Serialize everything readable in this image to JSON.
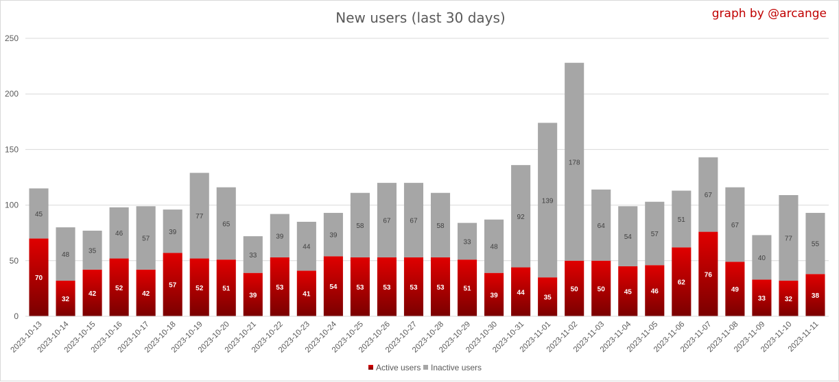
{
  "chart": {
    "credit": "graph by @arcange"
  },
  "colors": {
    "active_top": "#e00000",
    "active_bottom": "#7a0000",
    "inactive": "#a6a6a6",
    "grid": "#d9d9d9",
    "text": "#595959",
    "credit": "#c00000"
  },
  "chart_data": {
    "type": "bar",
    "stacked": true,
    "title": "New users (last 30 days)",
    "xlabel": "",
    "ylabel": "",
    "ylim": [
      0,
      250
    ],
    "yticks": [
      0,
      50,
      100,
      150,
      200,
      250
    ],
    "grid": true,
    "legend_position": "bottom",
    "categories": [
      "2023-10-13",
      "2023-10-14",
      "2023-10-15",
      "2023-10-16",
      "2023-10-17",
      "2023-10-18",
      "2023-10-19",
      "2023-10-20",
      "2023-10-21",
      "2023-10-22",
      "2023-10-23",
      "2023-10-24",
      "2023-10-25",
      "2023-10-26",
      "2023-10-27",
      "2023-10-28",
      "2023-10-29",
      "2023-10-30",
      "2023-10-31",
      "2023-11-01",
      "2023-11-02",
      "2023-11-03",
      "2023-11-04",
      "2023-11-05",
      "2023-11-06",
      "2023-11-07",
      "2023-11-08",
      "2023-11-09",
      "2023-11-10",
      "2023-11-11"
    ],
    "series": [
      {
        "name": "Active users",
        "values": [
          70,
          32,
          42,
          52,
          42,
          57,
          52,
          51,
          39,
          53,
          41,
          54,
          53,
          53,
          53,
          53,
          51,
          39,
          44,
          35,
          50,
          50,
          45,
          46,
          62,
          76,
          49,
          33,
          32,
          38
        ]
      },
      {
        "name": "Inactive users",
        "values": [
          45,
          48,
          35,
          46,
          57,
          39,
          77,
          65,
          33,
          39,
          44,
          39,
          58,
          67,
          67,
          58,
          33,
          48,
          92,
          139,
          178,
          64,
          54,
          57,
          51,
          67,
          67,
          40,
          77,
          55
        ]
      }
    ]
  }
}
